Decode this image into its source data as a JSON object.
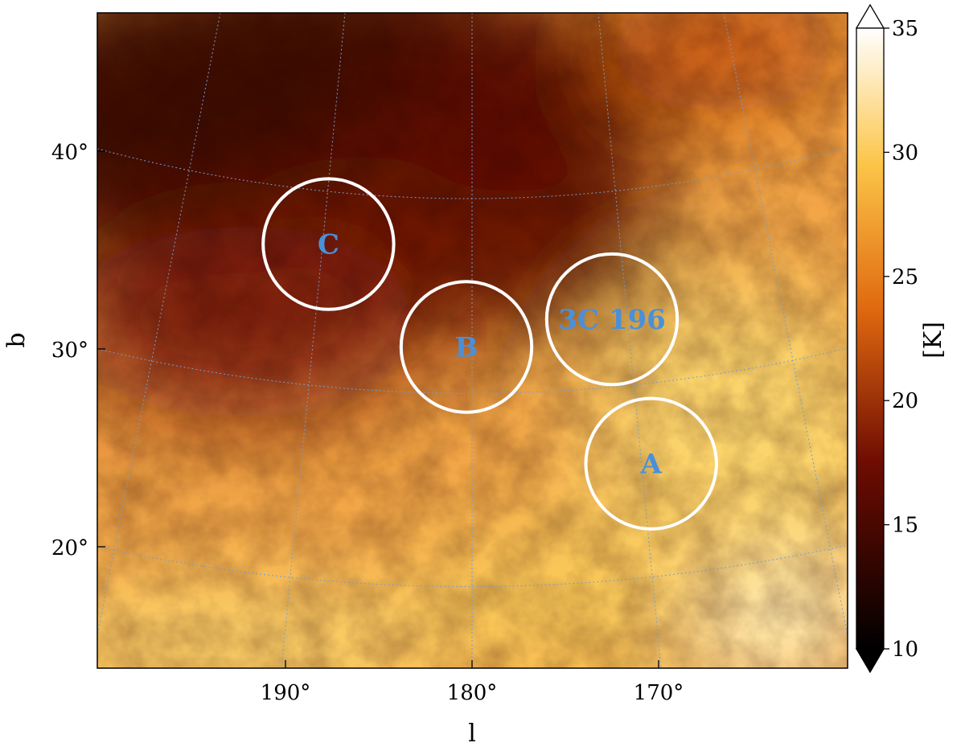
{
  "chart_data": {
    "type": "heatmap",
    "title": "",
    "xlabel": "l",
    "ylabel": "b",
    "x_ticks": [
      {
        "value": 190,
        "label": "190°"
      },
      {
        "value": 180,
        "label": "180°"
      },
      {
        "value": 170,
        "label": "170°"
      }
    ],
    "y_ticks": [
      {
        "value": 40,
        "label": "40°"
      },
      {
        "value": 30,
        "label": "30°"
      },
      {
        "value": 20,
        "label": "20°"
      }
    ],
    "grid": true,
    "projection": "curved galactic graticule",
    "colormap": "afmhot",
    "colorbar": {
      "label": "[K]",
      "range": [
        10,
        35
      ],
      "ticks": [
        {
          "value": 10,
          "label": "10"
        },
        {
          "value": 15,
          "label": "15"
        },
        {
          "value": 20,
          "label": "20"
        },
        {
          "value": 25,
          "label": "25"
        },
        {
          "value": 30,
          "label": "30"
        },
        {
          "value": 35,
          "label": "35"
        }
      ],
      "extend": "both"
    },
    "regions": [
      {
        "name": "C",
        "l": 187.7,
        "b": 35.3,
        "radius_deg": 3.5
      },
      {
        "name": "B",
        "l": 180.3,
        "b": 30.1,
        "radius_deg": 3.5
      },
      {
        "name": "3C 196",
        "l": 172.5,
        "b": 31.5,
        "radius_deg": 3.5
      },
      {
        "name": "A",
        "l": 170.4,
        "b": 24.2,
        "radius_deg": 3.5
      }
    ],
    "colors": {
      "grid": "#6f9fd6",
      "circle": "#ffffff",
      "region_label": "#4a90d9"
    }
  }
}
